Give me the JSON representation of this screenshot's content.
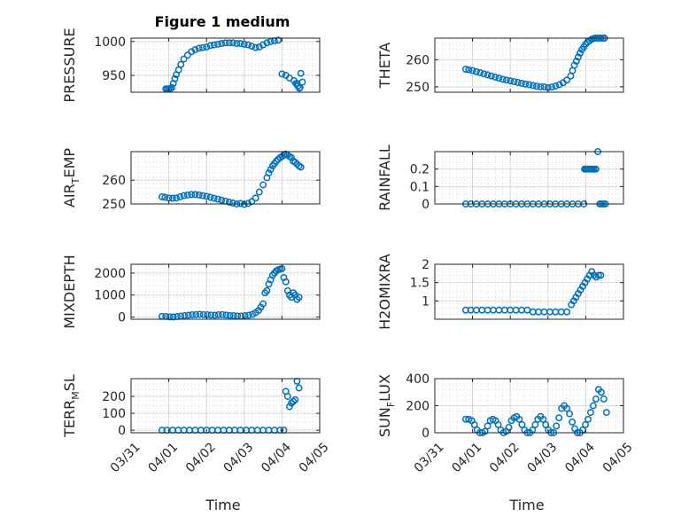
{
  "chart_data": [
    {
      "id": "pressure",
      "type": "scatter",
      "title": "Figure 1 medium",
      "ylabel": "PRESSURE",
      "xlim": [
        0,
        5
      ],
      "ylim": [
        925,
        1005
      ],
      "yticks": [
        {
          "v": 950,
          "t": "950"
        },
        {
          "v": 1000,
          "t": "1000"
        }
      ],
      "x": [
        0.92,
        0.96,
        1.0,
        1.04,
        1.08,
        1.12,
        1.16,
        1.2,
        1.26,
        1.32,
        1.4,
        1.5,
        1.6,
        1.7,
        1.8,
        1.9,
        2.0,
        2.1,
        2.2,
        2.3,
        2.4,
        2.5,
        2.6,
        2.7,
        2.8,
        2.9,
        3.0,
        3.1,
        3.2,
        3.3,
        3.4,
        3.5,
        3.6,
        3.7,
        3.8,
        3.9,
        4.0,
        4.1,
        4.2,
        4.32,
        4.37,
        4.42,
        4.46,
        4.5,
        4.54,
        4.4,
        4.48
      ],
      "y": [
        930,
        930,
        930,
        930,
        932,
        938,
        945,
        951,
        958,
        966,
        974,
        980,
        985,
        988,
        990,
        991,
        992,
        994,
        995,
        996,
        997,
        998,
        998,
        998,
        997,
        997,
        996,
        995,
        993,
        991,
        992,
        995,
        998,
        1000,
        1001,
        1002,
        952,
        950,
        946,
        942,
        938,
        934,
        931,
        953,
        940,
        938,
        932
      ]
    },
    {
      "id": "theta",
      "type": "scatter",
      "ylabel": "THETA",
      "xlim": [
        0,
        5
      ],
      "ylim": [
        248,
        268
      ],
      "yticks": [
        {
          "v": 250,
          "t": "250"
        },
        {
          "v": 260,
          "t": "260"
        }
      ],
      "x": [
        0.82,
        0.9,
        1.0,
        1.1,
        1.2,
        1.3,
        1.4,
        1.5,
        1.6,
        1.7,
        1.8,
        1.9,
        2.0,
        2.1,
        2.2,
        2.3,
        2.4,
        2.5,
        2.6,
        2.7,
        2.8,
        2.9,
        3.0,
        3.1,
        3.2,
        3.3,
        3.4,
        3.5,
        3.6,
        3.65,
        3.7,
        3.75,
        3.8,
        3.85,
        3.9,
        3.95,
        4.0,
        4.05,
        4.1,
        4.15,
        4.2,
        4.25,
        4.3,
        4.35,
        4.4,
        4.45,
        4.5
      ],
      "y": [
        256.5,
        256.3,
        256,
        255.6,
        255.2,
        254.8,
        254.4,
        254,
        253.6,
        253.2,
        252.8,
        252.5,
        252.2,
        251.9,
        251.6,
        251.3,
        251,
        250.8,
        250.5,
        250.2,
        250,
        250,
        249.7,
        249.9,
        250.3,
        250.8,
        251.5,
        252.5,
        254,
        256,
        258,
        259.5,
        261,
        262.5,
        263.8,
        264.8,
        265.8,
        266.5,
        267,
        267.5,
        267.8,
        268,
        268,
        268,
        268,
        268,
        268
      ]
    },
    {
      "id": "airtemp",
      "type": "scatter",
      "ylabel": "AIR_TEMP",
      "ylabel_main": "AIR",
      "ylabel_sub": "T",
      "ylabel_tail": "EMP",
      "xlim": [
        0,
        5
      ],
      "ylim": [
        250,
        272
      ],
      "yticks": [
        {
          "v": 250,
          "t": "250"
        },
        {
          "v": 260,
          "t": "260"
        }
      ],
      "x": [
        0.82,
        0.9,
        1.0,
        1.1,
        1.2,
        1.3,
        1.4,
        1.5,
        1.6,
        1.7,
        1.8,
        1.9,
        2.0,
        2.1,
        2.2,
        2.3,
        2.4,
        2.5,
        2.6,
        2.7,
        2.8,
        2.9,
        3.0,
        3.1,
        3.2,
        3.3,
        3.4,
        3.5,
        3.6,
        3.65,
        3.7,
        3.75,
        3.8,
        3.85,
        3.9,
        3.95,
        4.0,
        4.05,
        4.1,
        4.15,
        4.2,
        4.25,
        4.3,
        4.35,
        4.4,
        4.45,
        4.5
      ],
      "y": [
        253,
        252.8,
        252.5,
        252.4,
        252.5,
        253,
        253.5,
        253.8,
        254,
        254,
        253.8,
        253.5,
        253.2,
        252.8,
        252.4,
        252,
        251.6,
        251.2,
        250.8,
        250.4,
        250,
        250.2,
        249.8,
        250.2,
        251,
        252.5,
        255,
        258,
        261,
        263,
        264.5,
        266,
        267,
        268,
        268.8,
        269.5,
        270,
        270.5,
        271,
        270.5,
        270,
        269.5,
        268,
        267.5,
        266.8,
        266,
        265.5
      ]
    },
    {
      "id": "rainfall",
      "type": "scatter",
      "ylabel": "RAINFALL",
      "xlim": [
        0,
        5
      ],
      "ylim": [
        0,
        0.3
      ],
      "yticks": [
        {
          "v": 0,
          "t": "0"
        },
        {
          "v": 0.1,
          "t": "0.1"
        },
        {
          "v": 0.2,
          "t": "0.2"
        }
      ],
      "x": [
        0.82,
        0.95,
        1.1,
        1.25,
        1.4,
        1.55,
        1.7,
        1.85,
        2.0,
        2.15,
        2.3,
        2.45,
        2.6,
        2.75,
        2.9,
        3.05,
        3.2,
        3.35,
        3.5,
        3.65,
        3.8,
        3.95,
        3.97,
        4.0,
        4.03,
        4.06,
        4.09,
        4.12,
        4.15,
        4.18,
        4.22,
        4.27,
        4.32,
        4.37,
        4.42,
        4.47,
        4.52
      ],
      "y": [
        0,
        0,
        0,
        0,
        0,
        0,
        0,
        0,
        0,
        0,
        0,
        0,
        0,
        0,
        0,
        0,
        0,
        0,
        0,
        0,
        0,
        0,
        0.2,
        0.2,
        0.2,
        0.2,
        0.2,
        0.2,
        0.2,
        0.2,
        0.2,
        0.2,
        0.3,
        0,
        0,
        0,
        0
      ]
    },
    {
      "id": "mixdepth",
      "type": "scatter",
      "ylabel": "MIXDEPTH",
      "xlim": [
        0,
        5
      ],
      "ylim": [
        -100,
        2400
      ],
      "yticks": [
        {
          "v": 0,
          "t": "0"
        },
        {
          "v": 1000,
          "t": "1000"
        },
        {
          "v": 2000,
          "t": "2000"
        }
      ],
      "x": [
        0.82,
        0.92,
        1.02,
        1.12,
        1.22,
        1.32,
        1.42,
        1.52,
        1.62,
        1.72,
        1.82,
        1.92,
        2.02,
        2.12,
        2.22,
        2.32,
        2.42,
        2.52,
        2.62,
        2.72,
        2.82,
        2.92,
        3.02,
        3.12,
        3.22,
        3.3,
        3.38,
        3.44,
        3.5,
        3.55,
        3.6,
        3.65,
        3.7,
        3.75,
        3.8,
        3.85,
        3.9,
        3.95,
        4.0,
        4.05,
        4.1,
        4.15,
        4.2,
        4.25,
        4.3,
        4.35,
        4.4,
        4.45
      ],
      "y": [
        30,
        25,
        10,
        5,
        20,
        40,
        60,
        80,
        100,
        110,
        120,
        110,
        100,
        90,
        80,
        100,
        110,
        90,
        70,
        60,
        50,
        40,
        60,
        80,
        120,
        200,
        300,
        450,
        600,
        1100,
        1200,
        1500,
        1700,
        1900,
        2000,
        2100,
        2150,
        2180,
        2200,
        1800,
        1600,
        1200,
        1000,
        900,
        1100,
        1000,
        800,
        900
      ]
    },
    {
      "id": "h2omixra",
      "type": "scatter",
      "ylabel": "H2OMIXRA",
      "xlim": [
        0,
        5
      ],
      "ylim": [
        0.5,
        2.0
      ],
      "yticks": [
        {
          "v": 1,
          "t": "1"
        },
        {
          "v": 1.5,
          "t": "1.5"
        },
        {
          "v": 2,
          "t": "2"
        }
      ],
      "x": [
        0.82,
        0.95,
        1.1,
        1.25,
        1.4,
        1.55,
        1.7,
        1.85,
        2.0,
        2.15,
        2.3,
        2.45,
        2.6,
        2.75,
        2.9,
        3.05,
        3.2,
        3.35,
        3.5,
        3.62,
        3.68,
        3.74,
        3.8,
        3.86,
        3.92,
        3.98,
        4.04,
        4.1,
        4.16,
        4.22,
        4.28,
        4.34,
        4.4
      ],
      "y": [
        0.75,
        0.75,
        0.75,
        0.75,
        0.75,
        0.75,
        0.75,
        0.75,
        0.75,
        0.75,
        0.75,
        0.75,
        0.7,
        0.7,
        0.7,
        0.7,
        0.7,
        0.7,
        0.7,
        0.9,
        1.0,
        1.1,
        1.2,
        1.3,
        1.4,
        1.5,
        1.6,
        1.7,
        1.8,
        1.7,
        1.65,
        1.7,
        1.7
      ]
    },
    {
      "id": "terrmsl",
      "type": "scatter",
      "ylabel": "TERR_MSL",
      "ylabel_main": "TERR",
      "ylabel_sub": "M",
      "ylabel_tail": "SL",
      "xlim": [
        0,
        5
      ],
      "ylim": [
        -15,
        305
      ],
      "yticks": [
        {
          "v": 0,
          "t": "0"
        },
        {
          "v": 100,
          "t": "100"
        },
        {
          "v": 200,
          "t": "200"
        }
      ],
      "x": [
        0.82,
        0.95,
        1.1,
        1.25,
        1.4,
        1.55,
        1.7,
        1.85,
        2.0,
        2.15,
        2.3,
        2.45,
        2.6,
        2.75,
        2.9,
        3.05,
        3.2,
        3.35,
        3.5,
        3.65,
        3.8,
        3.95,
        4.05,
        4.1,
        4.15,
        4.2,
        4.25,
        4.3,
        4.35,
        4.4,
        4.45
      ],
      "y": [
        0,
        0,
        0,
        0,
        0,
        0,
        0,
        0,
        0,
        0,
        0,
        0,
        0,
        0,
        0,
        0,
        0,
        0,
        0,
        0,
        0,
        0,
        0,
        230,
        200,
        140,
        160,
        170,
        180,
        290,
        250
      ]
    },
    {
      "id": "sunflux",
      "type": "scatter",
      "ylabel": "SUN_FLUX",
      "ylabel_main": "SUN",
      "ylabel_sub": "F",
      "ylabel_tail": "LUX",
      "xlim": [
        0,
        5
      ],
      "ylim": [
        0,
        400
      ],
      "yticks": [
        {
          "v": 0,
          "t": "0"
        },
        {
          "v": 200,
          "t": "200"
        },
        {
          "v": 400,
          "t": "400"
        }
      ],
      "x": [
        0.82,
        0.9,
        0.98,
        1.05,
        1.12,
        1.19,
        1.26,
        1.33,
        1.4,
        1.47,
        1.54,
        1.61,
        1.68,
        1.75,
        1.82,
        1.89,
        1.96,
        2.03,
        2.1,
        2.17,
        2.24,
        2.31,
        2.38,
        2.45,
        2.52,
        2.59,
        2.66,
        2.73,
        2.8,
        2.87,
        2.94,
        3.01,
        3.08,
        3.15,
        3.22,
        3.29,
        3.36,
        3.43,
        3.5,
        3.57,
        3.64,
        3.71,
        3.78,
        3.85,
        3.92,
        3.99,
        4.06,
        4.13,
        4.2,
        4.27,
        4.34,
        4.41,
        4.48,
        4.55
      ],
      "y": [
        100,
        100,
        90,
        60,
        20,
        0,
        0,
        10,
        50,
        90,
        100,
        90,
        60,
        20,
        0,
        10,
        40,
        90,
        110,
        120,
        100,
        60,
        20,
        0,
        0,
        20,
        60,
        100,
        120,
        100,
        60,
        20,
        0,
        0,
        50,
        110,
        180,
        200,
        180,
        140,
        80,
        30,
        0,
        0,
        20,
        60,
        100,
        150,
        200,
        250,
        320,
        300,
        250,
        150
      ]
    }
  ],
  "xticks": [
    "03/31",
    "04/01",
    "04/02",
    "04/03",
    "04/04",
    "04/05"
  ],
  "xlabel": "Time",
  "color": "#0072BD"
}
